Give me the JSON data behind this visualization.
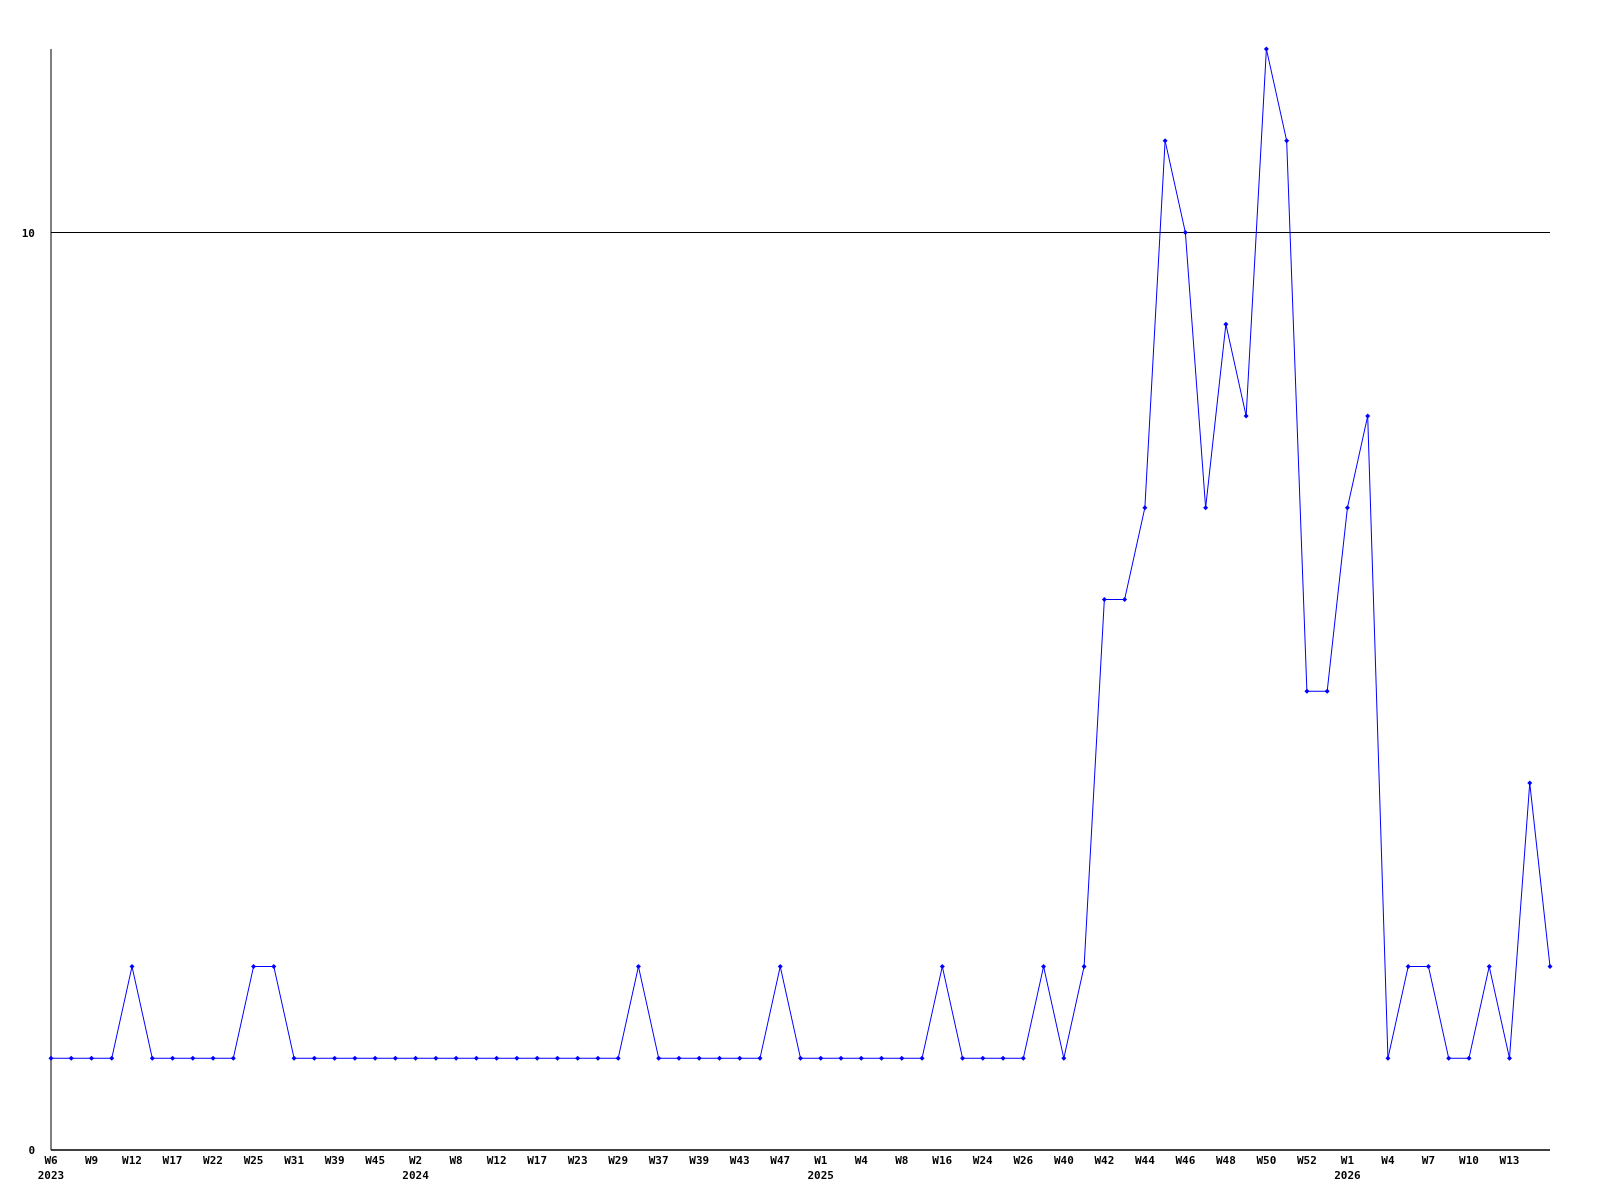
{
  "chart_data": {
    "type": "line",
    "categories": [
      "W6\n2023",
      null,
      "W9",
      null,
      "W12",
      null,
      "W17",
      null,
      "W22",
      null,
      "W25",
      null,
      "W31",
      null,
      "W39",
      null,
      "W45",
      null,
      "W2\n2024",
      null,
      "W8",
      null,
      "W12",
      null,
      "W17",
      null,
      "W23",
      null,
      "W29",
      null,
      "W37",
      null,
      "W39",
      null,
      "W43",
      null,
      "W47",
      null,
      "W1\n2025",
      null,
      "W4",
      null,
      "W8",
      null,
      "W16",
      null,
      "W24",
      null,
      "W26",
      null,
      "W40",
      null,
      "W42",
      null,
      "W44",
      null,
      "W46",
      null,
      "W48",
      null,
      "W50",
      null,
      "W52",
      null,
      "W1\n2026",
      null,
      "W4",
      null,
      "W7",
      null,
      "W10",
      null,
      "W13",
      null,
      null
    ],
    "series": [
      {
        "color": "#0000ff",
        "values": [
          1,
          1,
          1,
          1,
          2,
          1,
          1,
          1,
          1,
          1,
          2,
          2,
          1,
          1,
          1,
          1,
          1,
          1,
          1,
          1,
          1,
          1,
          1,
          1,
          1,
          1,
          1,
          1,
          1,
          2,
          1,
          1,
          1,
          1,
          1,
          1,
          2,
          1,
          1,
          1,
          1,
          1,
          1,
          1,
          2,
          1,
          1,
          1,
          1,
          2,
          1,
          2,
          6,
          6,
          7,
          11,
          10,
          7,
          9,
          8,
          12,
          11,
          5,
          5,
          7,
          8,
          1,
          2,
          2,
          1,
          1,
          2,
          1,
          4,
          2
        ]
      }
    ],
    "ylim": [
      0,
      12
    ],
    "yticks": [
      0,
      10
    ],
    "grid": "y",
    "marker": "diamond",
    "line_style": "solid"
  }
}
